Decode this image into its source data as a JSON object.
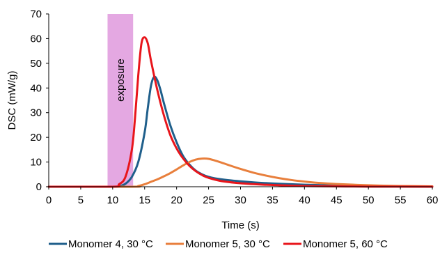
{
  "chart_data": {
    "type": "line",
    "xlabel": "Time (s)",
    "ylabel": "DSC (mW/g)",
    "xlim": [
      0,
      60
    ],
    "ylim": [
      0,
      70
    ],
    "xticks": [
      0,
      5,
      10,
      15,
      20,
      25,
      30,
      35,
      40,
      45,
      50,
      55,
      60
    ],
    "yticks": [
      0,
      10,
      20,
      30,
      40,
      50,
      60,
      70
    ],
    "grid": false,
    "legend_position": "bottom",
    "annotation": {
      "text": "exposure",
      "x_start": 9.2,
      "x_end": 13.2,
      "color": "#e4a8e2"
    },
    "series": [
      {
        "name": "Monomer 4, 30 °C",
        "color": "#1f5f8b",
        "x": [
          0,
          10,
          11,
          12,
          13,
          14,
          15,
          15.5,
          16,
          16.5,
          17,
          17.5,
          18,
          19,
          20,
          21,
          22,
          23,
          24,
          25,
          26,
          28,
          30,
          33,
          36,
          40,
          45,
          50,
          55,
          60
        ],
        "y": [
          0,
          0,
          0.2,
          1.2,
          4,
          10,
          22,
          32,
          41,
          44.5,
          43,
          39,
          34,
          25,
          18,
          12.5,
          9,
          6.5,
          5,
          4,
          3.4,
          2.7,
          2.2,
          1.6,
          1.2,
          0.8,
          0.5,
          0.3,
          0.15,
          0.05
        ]
      },
      {
        "name": "Monomer 5, 30 °C",
        "color": "#e87f3c",
        "x": [
          0,
          13,
          14,
          15,
          16,
          17,
          18,
          19,
          20,
          21,
          22,
          23,
          24,
          25,
          26,
          27,
          28,
          30,
          32,
          34,
          36,
          38,
          40,
          42,
          45,
          50,
          55,
          60
        ],
        "y": [
          0,
          0,
          0.3,
          1,
          2,
          3,
          4.2,
          5.5,
          7,
          8.6,
          10,
          11,
          11.4,
          11.3,
          10.6,
          9.8,
          8.9,
          7.2,
          5.7,
          4.5,
          3.5,
          2.7,
          2.1,
          1.6,
          1.1,
          0.6,
          0.3,
          0.15
        ]
      },
      {
        "name": "Monomer 5, 60 °C",
        "color": "#e8151b",
        "x": [
          0,
          10,
          11,
          12,
          13,
          13.5,
          14,
          14.5,
          15,
          15.5,
          16,
          17,
          18,
          19,
          20,
          21,
          22,
          23,
          24,
          25,
          27,
          30,
          33,
          36,
          40,
          45,
          50,
          60
        ],
        "y": [
          0,
          0,
          1,
          4,
          15,
          28,
          45,
          58,
          60.5,
          58,
          51,
          39,
          29,
          21,
          15.5,
          11.5,
          8.5,
          6.3,
          4.7,
          3.6,
          2.3,
          1.4,
          0.9,
          0.6,
          0.3,
          0.15,
          0.05,
          0
        ]
      }
    ]
  }
}
